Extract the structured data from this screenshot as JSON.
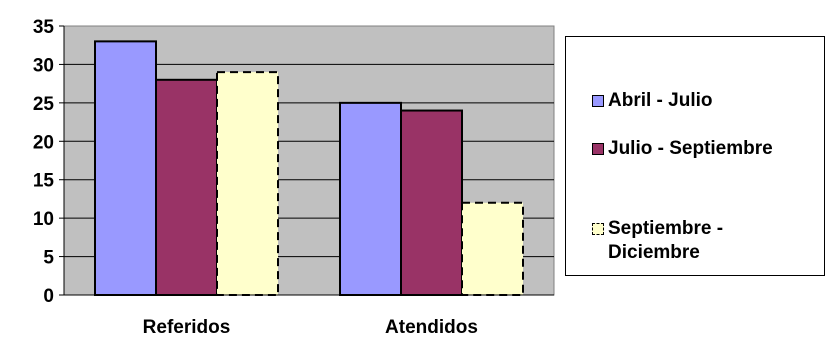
{
  "chart_data": {
    "type": "bar",
    "categories": [
      "Referidos",
      "Atendidos"
    ],
    "series": [
      {
        "name": "Abril - Julio",
        "values": [
          33,
          25
        ],
        "color": "#9999ff",
        "dashed": false
      },
      {
        "name": "Julio - Septiembre",
        "values": [
          28,
          24
        ],
        "color": "#993366",
        "dashed": false
      },
      {
        "name": "Septiembre - Diciembre",
        "values": [
          29,
          12
        ],
        "color": "#ffffcc",
        "dashed": true
      }
    ],
    "ylim": [
      0,
      35
    ],
    "yticks": [
      0,
      5,
      10,
      15,
      20,
      25,
      30,
      35
    ],
    "grid": true,
    "plot_background": "#c0c0c0",
    "legend_position": "right"
  },
  "legend": {
    "items": [
      {
        "label": "Abril - Julio"
      },
      {
        "label": "Julio - Septiembre"
      },
      {
        "label": "Septiembre - Diciembre"
      }
    ]
  }
}
